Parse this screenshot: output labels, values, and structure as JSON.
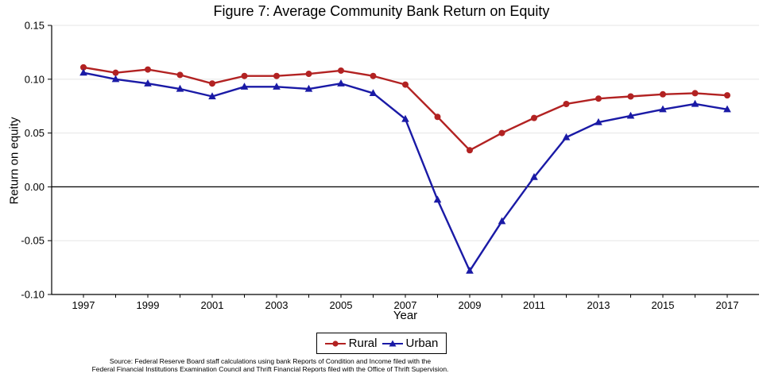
{
  "title": "Figure 7: Average Community Bank Return on Equity",
  "colors": {
    "rural": "#B22222",
    "urban": "#1A1AA6",
    "grid": "#E6E6E6",
    "axis": "#000000",
    "zero_line": "#000000"
  },
  "chart_data": {
    "type": "line",
    "title": "Figure 7: Average Community Bank Return on Equity",
    "xlabel": "Year",
    "ylabel": "Return on equity",
    "x": [
      1997,
      1998,
      1999,
      2000,
      2001,
      2002,
      2003,
      2004,
      2005,
      2006,
      2007,
      2008,
      2009,
      2010,
      2011,
      2012,
      2013,
      2014,
      2015,
      2016,
      2017
    ],
    "series": [
      {
        "name": "Rural",
        "color": "#B22222",
        "marker": "circle",
        "values": [
          0.111,
          0.106,
          0.109,
          0.104,
          0.096,
          0.103,
          0.103,
          0.105,
          0.108,
          0.103,
          0.095,
          0.065,
          0.034,
          0.05,
          0.064,
          0.077,
          0.082,
          0.084,
          0.086,
          0.087,
          0.085
        ]
      },
      {
        "name": "Urban",
        "color": "#1A1AA6",
        "marker": "triangle",
        "values": [
          0.106,
          0.1,
          0.096,
          0.091,
          0.084,
          0.093,
          0.093,
          0.091,
          0.096,
          0.087,
          0.063,
          -0.012,
          -0.078,
          -0.032,
          0.009,
          0.046,
          0.06,
          0.066,
          0.072,
          0.077,
          0.072
        ]
      }
    ],
    "ylim": [
      -0.1,
      0.15
    ],
    "yticks": [
      0.15,
      0.1,
      0.05,
      0.0,
      -0.05,
      -0.1
    ],
    "ytick_labels": [
      "0.15",
      "0.10",
      "0.05",
      "0.00",
      "-0.05",
      "-0.10"
    ],
    "xticks_labeled": [
      1997,
      1999,
      2001,
      2003,
      2005,
      2007,
      2009,
      2011,
      2013,
      2015,
      2017
    ],
    "grid": "horizontal",
    "zero_line": true,
    "legend_position": "bottom-center"
  },
  "legend": {
    "items": [
      {
        "label": "Rural"
      },
      {
        "label": "Urban"
      }
    ]
  },
  "source": {
    "line1": "Source: Federal Reserve Board staff calculations using bank Reports of Condition and Income filed with the",
    "line2": "Federal Financial Institutions Examination Council and Thrift Financial Reports filed with the Office of Thrift Supervision."
  }
}
